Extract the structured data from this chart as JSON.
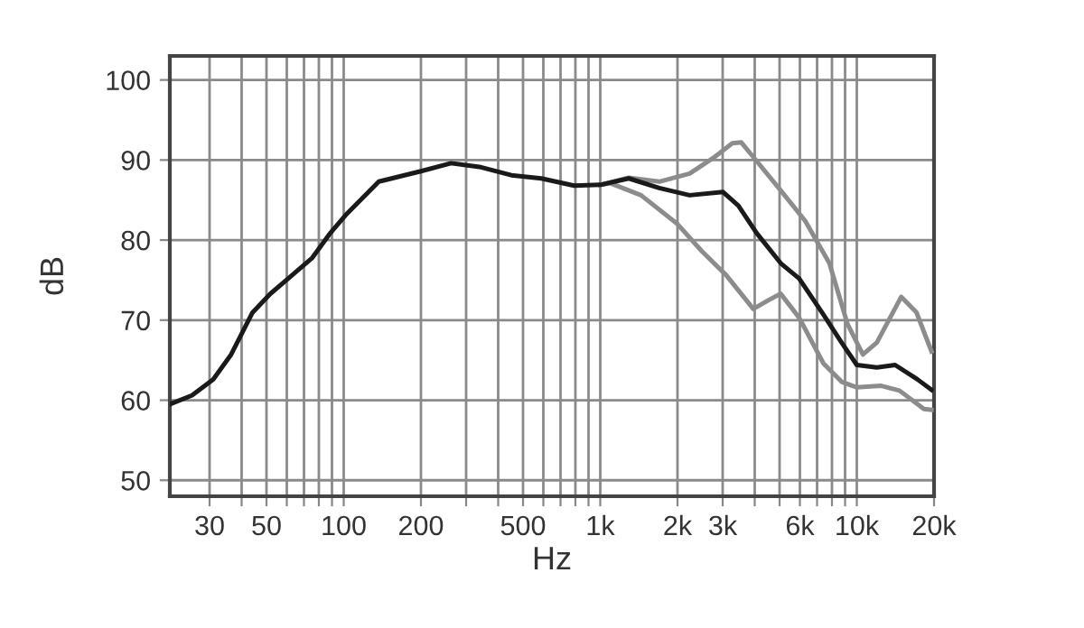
{
  "chart_data": {
    "type": "line",
    "xlabel": "Hz",
    "ylabel": "dB",
    "log": "x",
    "grid": true,
    "marker": "none",
    "line_style": "solid",
    "xlim": [
      21,
      20000
    ],
    "ylim": [
      48,
      103
    ],
    "yticks": [
      50,
      60,
      70,
      80,
      90,
      100
    ],
    "xticks": [
      {
        "value": 30,
        "label": "30"
      },
      {
        "value": 40,
        "label": null
      },
      {
        "value": 50,
        "label": "50"
      },
      {
        "value": 60,
        "label": null
      },
      {
        "value": 70,
        "label": null
      },
      {
        "value": 80,
        "label": null
      },
      {
        "value": 90,
        "label": null
      },
      {
        "value": 100,
        "label": "100"
      },
      {
        "value": 200,
        "label": "200"
      },
      {
        "value": 300,
        "label": null
      },
      {
        "value": 400,
        "label": null
      },
      {
        "value": 500,
        "label": "500"
      },
      {
        "value": 600,
        "label": null
      },
      {
        "value": 700,
        "label": null
      },
      {
        "value": 800,
        "label": null
      },
      {
        "value": 900,
        "label": null
      },
      {
        "value": 1000,
        "label": "1k"
      },
      {
        "value": 2000,
        "label": "2k"
      },
      {
        "value": 3000,
        "label": "3k"
      },
      {
        "value": 4000,
        "label": null
      },
      {
        "value": 5000,
        "label": null
      },
      {
        "value": 6000,
        "label": "6k"
      },
      {
        "value": 7000,
        "label": null
      },
      {
        "value": 8000,
        "label": null
      },
      {
        "value": 9000,
        "label": null
      },
      {
        "value": 10000,
        "label": "10k"
      },
      {
        "value": 20000,
        "label": "20k"
      }
    ],
    "series": [
      {
        "color": "#8c8c8c",
        "x": [
          1000,
          1292,
          1698,
          2230,
          2770,
          3270,
          3545,
          4064,
          5053,
          6290,
          7820,
          9200,
          10560,
          11970,
          14890,
          17060,
          19550
        ],
        "values": [
          86.9,
          87.8,
          87.3,
          88.3,
          90.3,
          92.1,
          92.2,
          89.9,
          86.2,
          82.4,
          77.1,
          69.5,
          65.7,
          67.2,
          72.9,
          71.0,
          66.1
        ]
      },
      {
        "color": "#8c8c8c",
        "x": [
          1000,
          1096,
          1442,
          2000,
          2490,
          3100,
          3950,
          4530,
          5050,
          5960,
          7410,
          8720,
          10000,
          12450,
          14660,
          18250,
          19550
        ],
        "values": [
          86.9,
          87.1,
          85.6,
          82.0,
          78.6,
          75.6,
          71.4,
          72.5,
          73.3,
          70.3,
          64.6,
          62.3,
          61.6,
          61.8,
          61.2,
          58.9,
          58.8
        ]
      },
      {
        "color": "#1a1a1a",
        "x": [
          21,
          25.6,
          31,
          36.4,
          44,
          51.8,
          60.8,
          75.5,
          88.8,
          101.6,
          137,
          200,
          262,
          343,
          450,
          589,
          791,
          1000,
          1292,
          1698,
          2230,
          3010,
          3453,
          4064,
          5053,
          5957,
          7410,
          8720,
          10000,
          11970,
          14100,
          17060,
          19550
        ],
        "values": [
          59.5,
          60.6,
          62.6,
          65.7,
          70.9,
          73.3,
          75.2,
          77.8,
          80.9,
          83.1,
          87.3,
          88.6,
          89.6,
          89.1,
          88.1,
          87.7,
          86.8,
          86.9,
          87.7,
          86.5,
          85.6,
          86.0,
          84.3,
          80.9,
          77.1,
          75.2,
          70.7,
          67.2,
          64.4,
          64.1,
          64.4,
          62.7,
          61.3
        ]
      }
    ]
  }
}
